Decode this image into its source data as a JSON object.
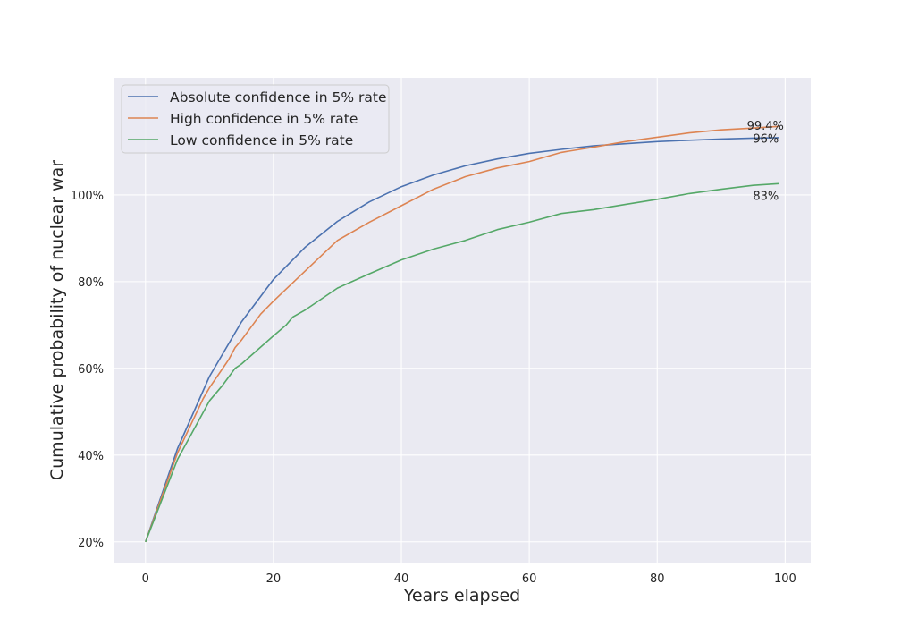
{
  "chart_data": {
    "type": "line",
    "xlabel": "Years elapsed",
    "ylabel": "Cumulative probability of nuclear war",
    "xlim": [
      -5,
      104
    ],
    "ylim": [
      15,
      127
    ],
    "x_ticks": [
      0,
      20,
      40,
      60,
      80,
      100
    ],
    "x_tick_labels": [
      "0",
      "20",
      "40",
      "60",
      "80",
      "100"
    ],
    "y_ticks": [
      20,
      40,
      60,
      80,
      100
    ],
    "y_tick_labels": [
      "20%",
      "40%",
      "60%",
      "80%",
      "100%"
    ],
    "grid": true,
    "legend_position": "top-left",
    "series": [
      {
        "name": "Absolute confidence in 5% rate",
        "color": "#4c72b0",
        "x": [
          0,
          5,
          10,
          15,
          20,
          25,
          30,
          35,
          40,
          45,
          50,
          55,
          60,
          65,
          70,
          75,
          80,
          85,
          90,
          95,
          99
        ],
        "y": [
          20,
          41.5,
          58.1,
          70.7,
          80.5,
          88.0,
          93.9,
          98.4,
          101.9,
          104.6,
          106.7,
          108.3,
          109.6,
          110.5,
          111.3,
          111.8,
          112.3,
          112.6,
          112.9,
          113.1,
          113.2
        ],
        "end_label": "99.4%"
      },
      {
        "name": "High confidence in 5% rate",
        "color": "#dd8452",
        "x": [
          0,
          5,
          9,
          10,
          13,
          14,
          15,
          18,
          20,
          25,
          30,
          35,
          40,
          45,
          50,
          55,
          60,
          65,
          70,
          75,
          80,
          85,
          90,
          95,
          99
        ],
        "y": [
          20,
          40.5,
          53.0,
          55.5,
          62.0,
          64.8,
          66.5,
          72.5,
          75.5,
          82.5,
          89.5,
          93.7,
          97.5,
          101.3,
          104.2,
          106.2,
          107.7,
          109.8,
          111.0,
          112.3,
          113.3,
          114.3,
          115.0,
          115.4,
          115.8
        ],
        "end_label": "96%"
      },
      {
        "name": "Low confidence in 5% rate",
        "color": "#55a868",
        "x": [
          0,
          5,
          10,
          12,
          14,
          15,
          20,
          22,
          23,
          25,
          30,
          35,
          40,
          45,
          50,
          55,
          60,
          65,
          70,
          75,
          80,
          85,
          90,
          95,
          99
        ],
        "y": [
          20,
          39.0,
          52.5,
          56.0,
          60.0,
          61.0,
          67.5,
          70.0,
          71.8,
          73.5,
          78.5,
          81.8,
          85.0,
          87.5,
          89.5,
          92.0,
          93.7,
          95.7,
          96.6,
          97.8,
          99.0,
          100.3,
          101.3,
          102.2,
          102.6
        ],
        "end_label": "83%"
      }
    ]
  }
}
